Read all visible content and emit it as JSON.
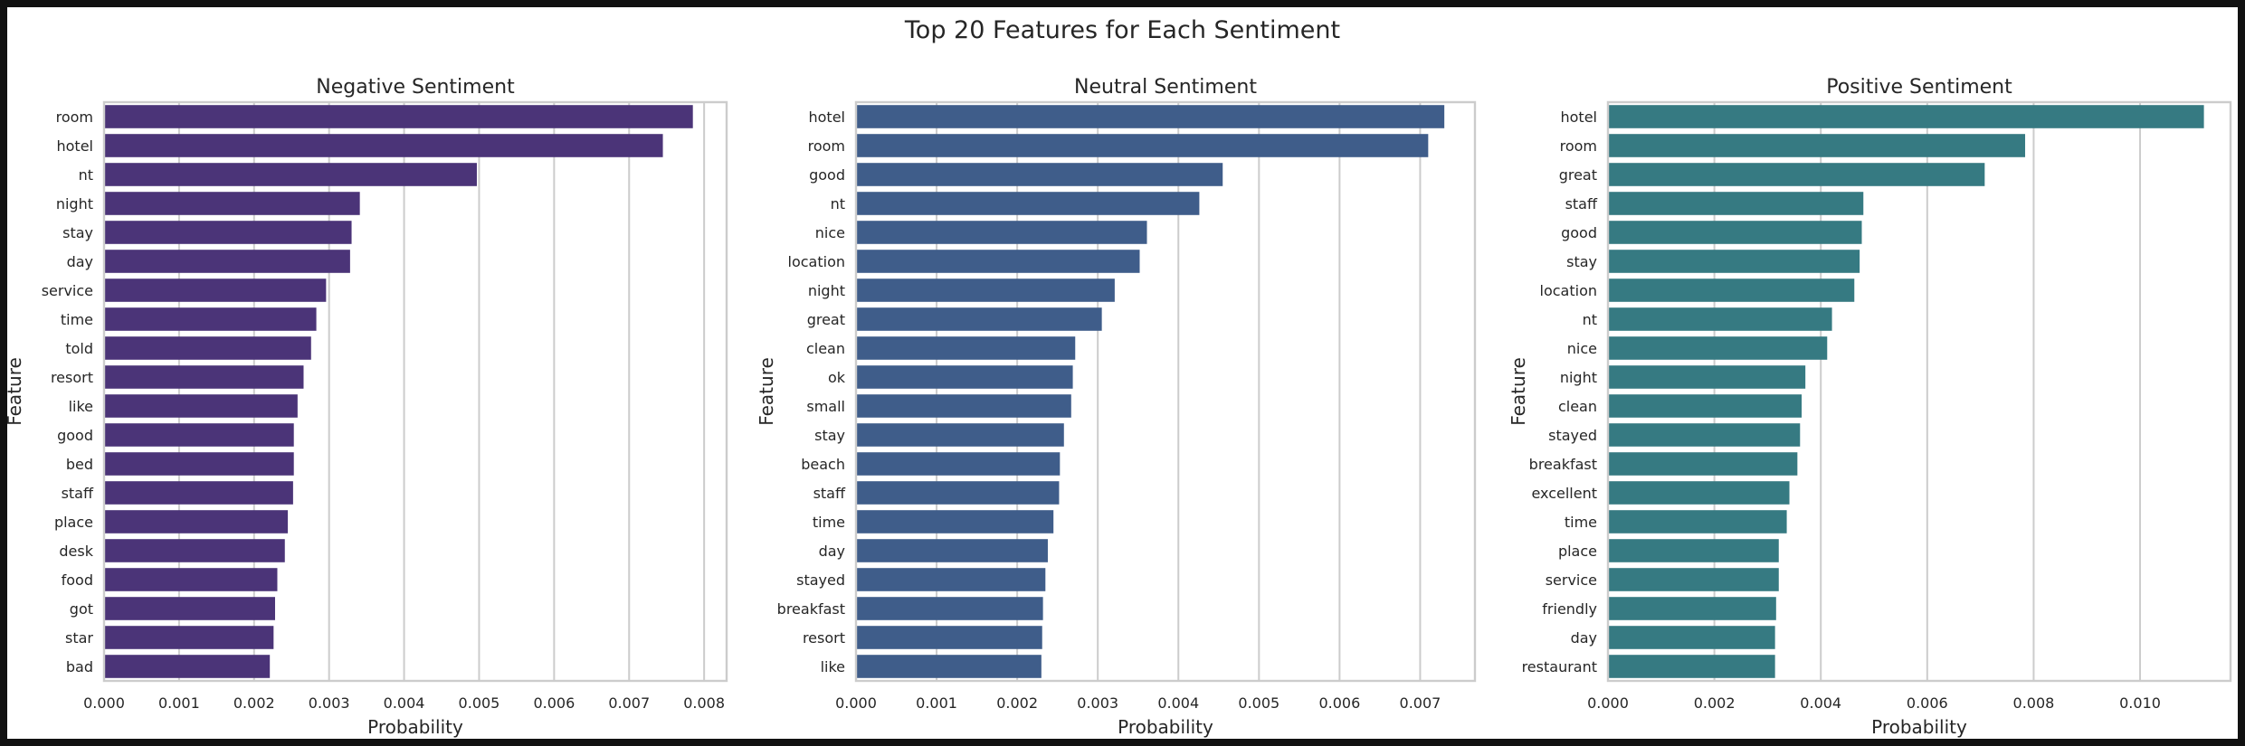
{
  "figure": {
    "title": "Top 20 Features for Each Sentiment"
  },
  "chart_data": [
    {
      "type": "bar",
      "orientation": "horizontal",
      "title": "Negative Sentiment",
      "xlabel": "Probability",
      "ylabel": "Feature",
      "color": "#4b3478",
      "xlim": [
        0,
        0.0083
      ],
      "xticks": [
        0,
        0.001,
        0.002,
        0.003,
        0.004,
        0.005,
        0.006,
        0.007,
        0.008
      ],
      "xtick_labels": [
        "0.000",
        "0.001",
        "0.002",
        "0.003",
        "0.004",
        "0.005",
        "0.006",
        "0.007",
        "0.008"
      ],
      "grid": true,
      "categories": [
        "room",
        "hotel",
        "nt",
        "night",
        "stay",
        "day",
        "service",
        "time",
        "told",
        "resort",
        "like",
        "good",
        "bed",
        "staff",
        "place",
        "desk",
        "food",
        "got",
        "star",
        "bad"
      ],
      "values": [
        0.00785,
        0.00745,
        0.00497,
        0.00341,
        0.0033,
        0.00328,
        0.00296,
        0.00283,
        0.00276,
        0.00266,
        0.00258,
        0.00253,
        0.00253,
        0.00252,
        0.00245,
        0.00241,
        0.00231,
        0.00228,
        0.00226,
        0.00221
      ]
    },
    {
      "type": "bar",
      "orientation": "horizontal",
      "title": "Neutral Sentiment",
      "xlabel": "Probability",
      "ylabel": "Feature",
      "color": "#3f5d8a",
      "xlim": [
        0,
        0.00768
      ],
      "xticks": [
        0,
        0.001,
        0.002,
        0.003,
        0.004,
        0.005,
        0.006,
        0.007
      ],
      "xtick_labels": [
        "0.000",
        "0.001",
        "0.002",
        "0.003",
        "0.004",
        "0.005",
        "0.006",
        "0.007"
      ],
      "grid": true,
      "categories": [
        "hotel",
        "room",
        "good",
        "nt",
        "nice",
        "location",
        "night",
        "great",
        "clean",
        "ok",
        "small",
        "stay",
        "beach",
        "staff",
        "time",
        "day",
        "stayed",
        "breakfast",
        "resort",
        "like"
      ],
      "values": [
        0.0073,
        0.0071,
        0.00455,
        0.00426,
        0.00361,
        0.00352,
        0.00321,
        0.00305,
        0.00272,
        0.00269,
        0.00267,
        0.00258,
        0.00253,
        0.00252,
        0.00245,
        0.00238,
        0.00235,
        0.00232,
        0.00231,
        0.0023
      ]
    },
    {
      "type": "bar",
      "orientation": "horizontal",
      "title": "Positive Sentiment",
      "xlabel": "Probability",
      "ylabel": "Feature",
      "color": "#367a82",
      "xlim": [
        0,
        0.0117
      ],
      "xticks": [
        0,
        0.002,
        0.004,
        0.006,
        0.008,
        0.01
      ],
      "xtick_labels": [
        "0.000",
        "0.002",
        "0.004",
        "0.006",
        "0.008",
        "0.010"
      ],
      "grid": true,
      "categories": [
        "hotel",
        "room",
        "great",
        "staff",
        "good",
        "stay",
        "location",
        "nt",
        "nice",
        "night",
        "clean",
        "stayed",
        "breakfast",
        "excellent",
        "time",
        "place",
        "service",
        "friendly",
        "day",
        "restaurant"
      ],
      "values": [
        0.0112,
        0.00784,
        0.00708,
        0.0048,
        0.00477,
        0.00473,
        0.00463,
        0.00421,
        0.00412,
        0.00371,
        0.00364,
        0.00361,
        0.00356,
        0.00341,
        0.00336,
        0.00321,
        0.00321,
        0.00316,
        0.00314,
        0.00314
      ]
    }
  ]
}
